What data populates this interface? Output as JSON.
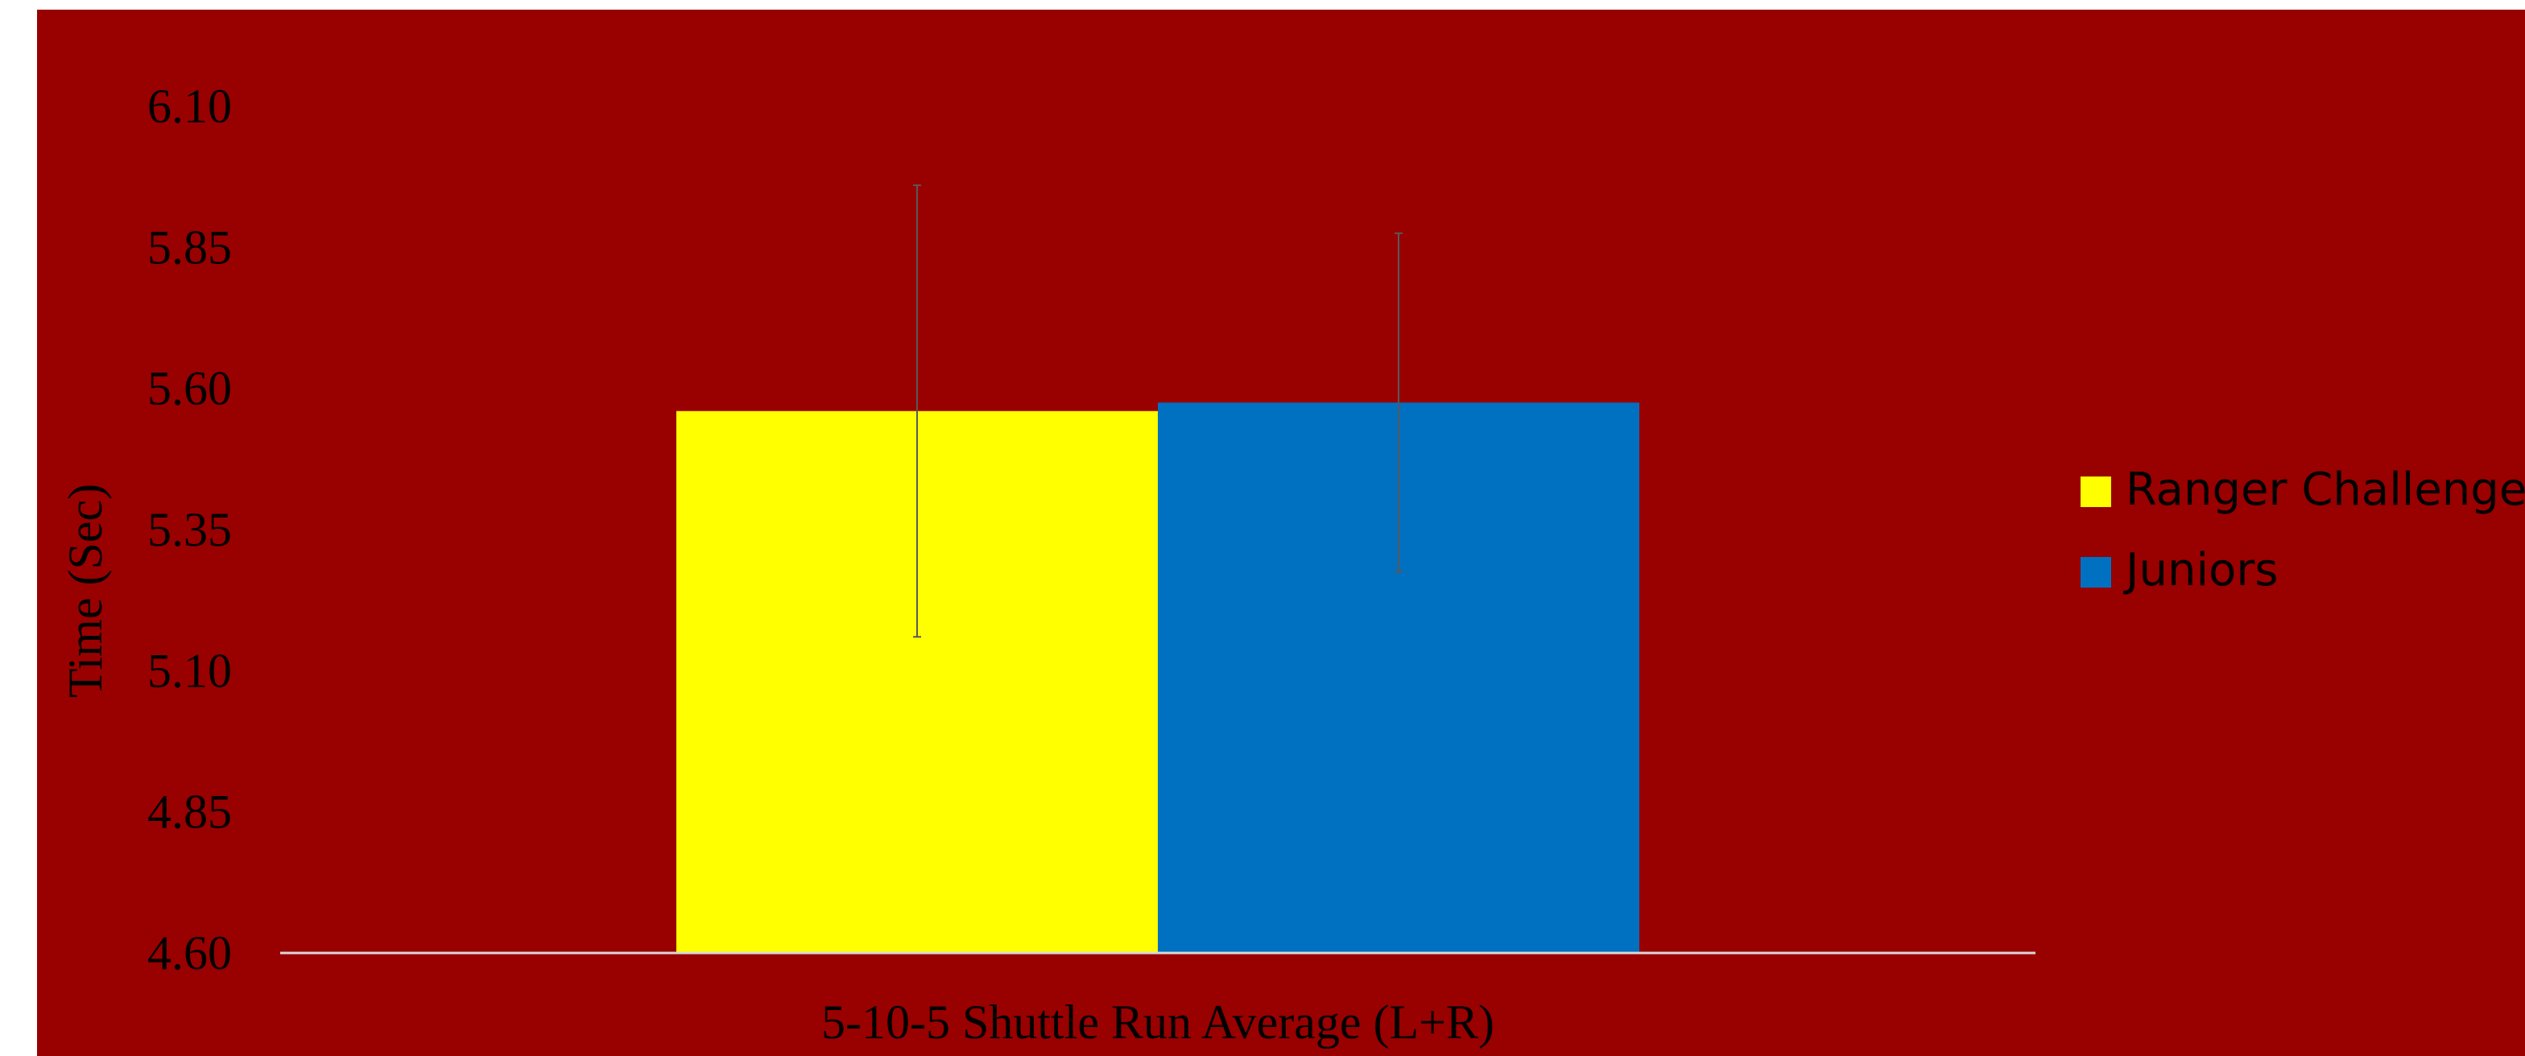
{
  "chart_data": {
    "type": "bar",
    "title": "",
    "xlabel": "5-10-5 Shuttle Run Average (L+R)",
    "ylabel": "Time (Sec)",
    "categories": [
      "5-10-5 Shuttle Run Average (L+R)"
    ],
    "ylim": [
      4.6,
      6.1
    ],
    "yticks": [
      "4.60",
      "4.85",
      "5.10",
      "5.35",
      "5.60",
      "5.85",
      "6.10"
    ],
    "grid": false,
    "legend_position": "right",
    "series": [
      {
        "name": "Ranger Challenge",
        "values": [
          5.56
        ],
        "error": [
          0.4
        ],
        "color": "#ffff00"
      },
      {
        "name": "Juniors",
        "values": [
          5.575
        ],
        "error": [
          0.3
        ],
        "color": "#0070c0"
      }
    ],
    "colors": {
      "background": "#990000",
      "axis": "#d9d9d9",
      "error_bar": "#595959"
    }
  }
}
